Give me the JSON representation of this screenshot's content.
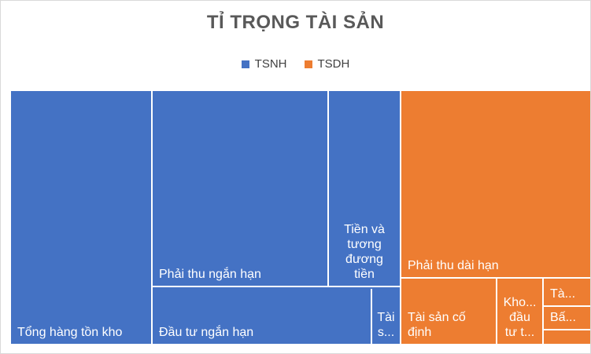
{
  "chart_data": {
    "type": "treemap",
    "title": "TỈ TRỌNG TÀI SẢN",
    "legend": [
      "TSNH",
      "TSDH"
    ],
    "legend_position": "top",
    "colors": {
      "TSNH": "#4472c4",
      "TSDH": "#ed7d31"
    },
    "nodes": [
      {
        "group": "TSNH",
        "lines": [
          "Tổng hàng tồn kho"
        ]
      },
      {
        "group": "TSNH",
        "lines": [
          "Phải thu ngắn hạn"
        ]
      },
      {
        "group": "TSNH",
        "lines": [
          "Tiền và",
          "tương",
          "đương",
          "tiền"
        ]
      },
      {
        "group": "TSNH",
        "lines": []
      },
      {
        "group": "TSNH",
        "lines": [
          "Đầu tư ngắn hạn"
        ]
      },
      {
        "group": "TSNH",
        "lines": [
          "Tài",
          "s..."
        ]
      },
      {
        "group": "TSDH",
        "lines": [
          "Phải thu dài hạn"
        ]
      },
      {
        "group": "TSDH",
        "lines": [
          "Tài sản cố",
          "định"
        ]
      },
      {
        "group": "TSDH",
        "lines": [
          "Kho...",
          "đầu",
          "tư t..."
        ]
      },
      {
        "group": "TSDH",
        "lines": [
          "Tà..."
        ]
      },
      {
        "group": "TSDH",
        "lines": [
          "Bấ..."
        ]
      },
      {
        "group": "TSDH",
        "lines": []
      }
    ]
  }
}
